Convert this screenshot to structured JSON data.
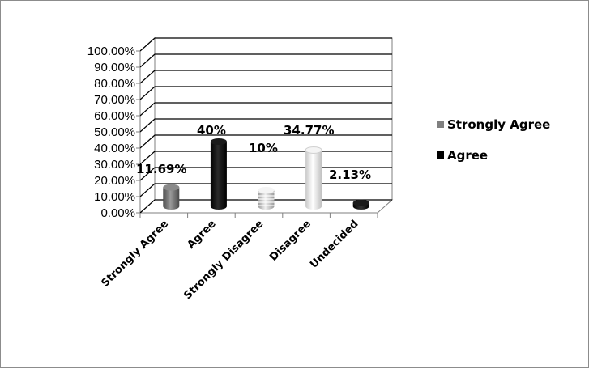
{
  "chart_data": {
    "type": "bar",
    "title": "",
    "xlabel": "",
    "ylabel": "",
    "categories": [
      "Strongly Agree",
      "Agree",
      "Strongly Disagree",
      "Disagree",
      "Undecided"
    ],
    "values": [
      11.69,
      40,
      10,
      34.77,
      2.13
    ],
    "data_labels": [
      "11.69%",
      "40%",
      "10%",
      "34.77%",
      "2.13%"
    ],
    "ylim": [
      0,
      100
    ],
    "yticks": [
      "0.00%",
      "10.00%",
      "20.00%",
      "30.00%",
      "40.00%",
      "50.00%",
      "60.00%",
      "70.00%",
      "80.00%",
      "90.00%",
      "100.00%"
    ],
    "grid": true,
    "three_d": true,
    "bar_colors": [
      "#6e6e6e",
      "#000000",
      "#c8c8c8",
      "#e0e0e0",
      "#000000"
    ],
    "legend": {
      "position": "right",
      "entries": [
        {
          "label": "Strongly Agree",
          "color": "#808080"
        },
        {
          "label": "Agree",
          "color": "#000000"
        }
      ]
    }
  }
}
